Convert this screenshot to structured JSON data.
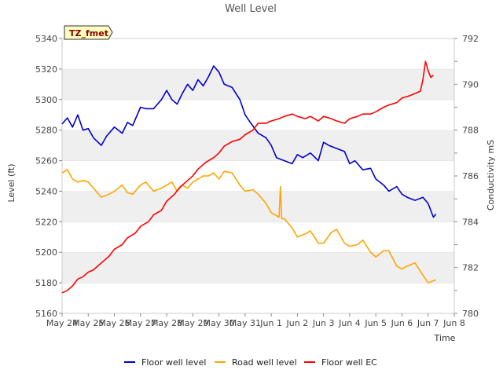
{
  "chart_data": {
    "type": "line",
    "title": "Well Level",
    "xlabel": "Time",
    "ylabel": "Level (ft)",
    "y2label": "Conductivity mS",
    "xlim": [
      0,
      15
    ],
    "ylim": [
      5160,
      5340
    ],
    "y2lim": [
      780,
      792
    ],
    "x_tick_values": [
      0,
      1,
      2,
      3,
      4,
      5,
      6,
      7,
      8,
      9,
      10,
      11,
      12,
      13,
      14,
      15
    ],
    "x_tick_labels": [
      "May 24",
      "May 25",
      "May 26",
      "May 27",
      "May 28",
      "May 29",
      "May 30",
      "May 31",
      "Jun 1",
      "Jun 2",
      "Jun 3",
      "Jun 4",
      "Jun 5",
      "Jun 6",
      "Jun 7",
      "Jun 8"
    ],
    "y_ticks": [
      5160,
      5180,
      5200,
      5220,
      5240,
      5260,
      5280,
      5300,
      5320,
      5340
    ],
    "y2_ticks": [
      780,
      782,
      784,
      786,
      788,
      790,
      792
    ],
    "grid": "horizontal bands",
    "legend_position": "bottom-center",
    "annotation": "TZ_fmet",
    "series": [
      {
        "name": "Floor well level",
        "axis": "left",
        "color": "#0000cc",
        "x": [
          0.0,
          0.2,
          0.4,
          0.6,
          0.8,
          1.0,
          1.2,
          1.5,
          1.7,
          2.0,
          2.3,
          2.5,
          2.7,
          3.0,
          3.2,
          3.5,
          3.8,
          4.0,
          4.2,
          4.4,
          4.6,
          4.8,
          5.0,
          5.2,
          5.4,
          5.6,
          5.8,
          6.0,
          6.2,
          6.5,
          6.8,
          7.0,
          7.2,
          7.5,
          7.8,
          8.0,
          8.2,
          8.5,
          8.8,
          9.0,
          9.2,
          9.5,
          9.8,
          10.0,
          10.2,
          10.5,
          10.8,
          11.0,
          11.2,
          11.5,
          11.8,
          12.0,
          12.3,
          12.5,
          12.8,
          13.0,
          13.2,
          13.5,
          13.8,
          14.0,
          14.2,
          14.3
        ],
        "values": [
          5284,
          5288,
          5282,
          5290,
          5280,
          5281,
          5275,
          5270,
          5276,
          5282,
          5278,
          5285,
          5283,
          5295,
          5294,
          5294,
          5300,
          5306,
          5300,
          5297,
          5304,
          5310,
          5306,
          5313,
          5309,
          5315,
          5322,
          5318,
          5310,
          5308,
          5300,
          5290,
          5285,
          5278,
          5275,
          5270,
          5262,
          5260,
          5258,
          5264,
          5262,
          5265,
          5260,
          5272,
          5270,
          5268,
          5266,
          5258,
          5260,
          5254,
          5255,
          5248,
          5244,
          5240,
          5243,
          5238,
          5236,
          5234,
          5236,
          5232,
          5223,
          5225
        ]
      },
      {
        "name": "Road well level",
        "axis": "left",
        "color": "#ffa500",
        "x": [
          0.0,
          0.2,
          0.4,
          0.6,
          0.8,
          1.0,
          1.3,
          1.5,
          1.8,
          2.0,
          2.3,
          2.5,
          2.7,
          3.0,
          3.2,
          3.5,
          3.8,
          4.0,
          4.2,
          4.4,
          4.6,
          4.8,
          5.0,
          5.2,
          5.4,
          5.6,
          5.8,
          6.0,
          6.2,
          6.5,
          6.8,
          7.0,
          7.3,
          7.5,
          7.8,
          8.0,
          8.2,
          8.3,
          8.35,
          8.4,
          8.5,
          8.8,
          9.0,
          9.3,
          9.5,
          9.8,
          10.0,
          10.3,
          10.5,
          10.8,
          11.0,
          11.3,
          11.5,
          11.8,
          12.0,
          12.3,
          12.5,
          12.8,
          13.0,
          13.2,
          13.5,
          13.8,
          14.0,
          14.3
        ],
        "values": [
          5252,
          5254,
          5248,
          5246,
          5247,
          5246,
          5240,
          5236,
          5238,
          5240,
          5244,
          5239,
          5238,
          5244,
          5246,
          5240,
          5242,
          5244,
          5246,
          5240,
          5244,
          5242,
          5246,
          5248,
          5250,
          5250,
          5252,
          5248,
          5253,
          5252,
          5244,
          5240,
          5241,
          5238,
          5232,
          5226,
          5224,
          5223,
          5243,
          5222,
          5222,
          5216,
          5210,
          5212,
          5214,
          5206,
          5206,
          5213,
          5215,
          5206,
          5204,
          5205,
          5208,
          5200,
          5197,
          5201,
          5201,
          5191,
          5189,
          5191,
          5193,
          5185,
          5180,
          5182
        ]
      },
      {
        "name": "Floor well EC",
        "axis": "right",
        "color": "#ff0000",
        "x": [
          0.0,
          0.2,
          0.4,
          0.6,
          0.8,
          1.0,
          1.2,
          1.5,
          1.8,
          2.0,
          2.3,
          2.5,
          2.8,
          3.0,
          3.3,
          3.5,
          3.8,
          4.0,
          4.3,
          4.5,
          4.8,
          5.0,
          5.2,
          5.5,
          5.8,
          6.0,
          6.2,
          6.5,
          6.8,
          7.0,
          7.3,
          7.5,
          7.8,
          8.0,
          8.3,
          8.5,
          8.8,
          9.0,
          9.3,
          9.5,
          9.8,
          10.0,
          10.3,
          10.5,
          10.8,
          11.0,
          11.3,
          11.5,
          11.8,
          12.0,
          12.3,
          12.5,
          12.8,
          13.0,
          13.3,
          13.5,
          13.7,
          13.8,
          13.9,
          14.0,
          14.1,
          14.2
        ],
        "values": [
          780.9,
          781.0,
          781.2,
          781.5,
          781.6,
          781.8,
          781.9,
          782.2,
          782.5,
          782.8,
          783.0,
          783.3,
          783.5,
          783.8,
          784.0,
          784.3,
          784.5,
          784.9,
          785.2,
          785.5,
          785.8,
          786.0,
          786.3,
          786.6,
          786.8,
          787.0,
          787.3,
          787.5,
          787.6,
          787.8,
          788.0,
          788.3,
          788.3,
          788.4,
          788.5,
          788.6,
          788.7,
          788.6,
          788.5,
          788.6,
          788.4,
          788.6,
          788.5,
          788.4,
          788.3,
          788.5,
          788.6,
          788.7,
          788.7,
          788.8,
          789.0,
          789.1,
          789.2,
          789.4,
          789.5,
          789.6,
          789.7,
          790.2,
          791.0,
          790.6,
          790.3,
          790.4
        ]
      }
    ]
  }
}
